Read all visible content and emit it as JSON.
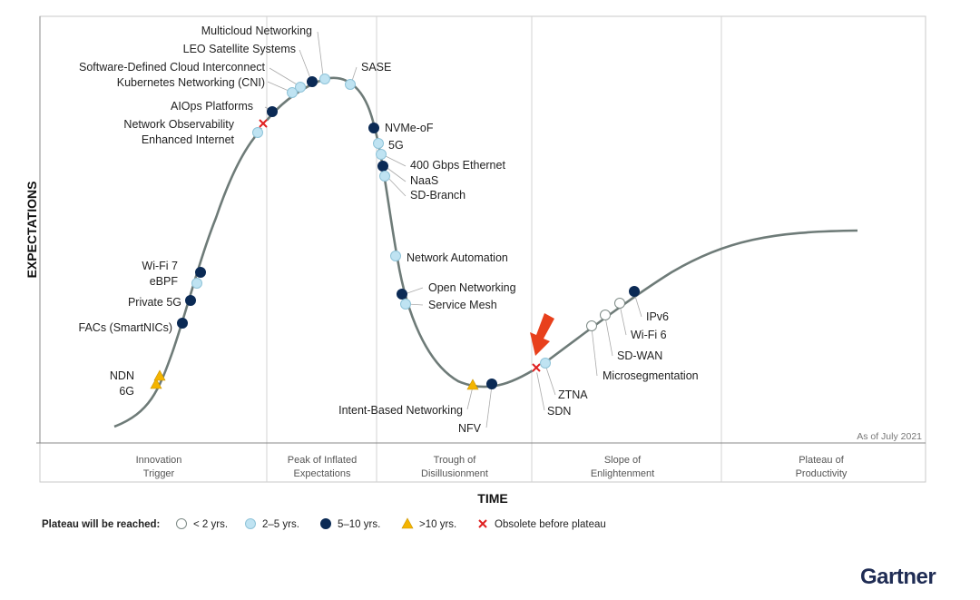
{
  "chart_data": {
    "type": "scatter",
    "title": "",
    "xlabel": "TIME",
    "ylabel": "EXPECTATIONS",
    "as_of": "As of July 2021",
    "brand": "Gartner",
    "phases": [
      [
        "Innovation",
        "Trigger"
      ],
      [
        "Peak of Inflated",
        "Expectations"
      ],
      [
        "Trough of",
        "Disillusionment"
      ],
      [
        "Slope of",
        "Enlightenment"
      ],
      [
        "Plateau of",
        "Productivity"
      ]
    ],
    "legend": {
      "title": "Plateau will be reached:",
      "items": [
        {
          "category": "lt2",
          "label": "< 2 yrs."
        },
        {
          "category": "2to5",
          "label": "2–5 yrs."
        },
        {
          "category": "5to10",
          "label": "5–10 yrs."
        },
        {
          "category": "gt10",
          "label": ">10 yrs."
        },
        {
          "category": "obsolete",
          "label": "Obsolete before plateau"
        }
      ]
    },
    "category_colors": {
      "lt2": "#ffffff",
      "2to5": "#bfe3f2",
      "5to10": "#0b2a55",
      "gt10": "#f4b400",
      "obsolete": "#e02020"
    },
    "curve_color": "#6e7b78",
    "highlight_arrow_color": "#e8401c",
    "points": [
      {
        "name": "6G",
        "category": "gt10"
      },
      {
        "name": "NDN",
        "category": "gt10"
      },
      {
        "name": "FACs (SmartNICs)",
        "category": "5to10"
      },
      {
        "name": "Private 5G",
        "category": "5to10"
      },
      {
        "name": "eBPF",
        "category": "2to5"
      },
      {
        "name": "Wi-Fi 7",
        "category": "5to10"
      },
      {
        "name": "Enhanced Internet",
        "category": "2to5"
      },
      {
        "name": "Network Observability",
        "category": "obsolete"
      },
      {
        "name": "AIOps Platforms",
        "category": "5to10"
      },
      {
        "name": "Kubernetes Networking (CNI)",
        "category": "2to5"
      },
      {
        "name": "Software-Defined Cloud Interconnect",
        "category": "2to5"
      },
      {
        "name": "LEO Satellite Systems",
        "category": "5to10"
      },
      {
        "name": "Multicloud Networking",
        "category": "2to5"
      },
      {
        "name": "SASE",
        "category": "2to5"
      },
      {
        "name": "NVMe-oF",
        "category": "5to10"
      },
      {
        "name": "5G",
        "category": "2to5"
      },
      {
        "name": "400 Gbps Ethernet",
        "category": "2to5"
      },
      {
        "name": "NaaS",
        "category": "5to10"
      },
      {
        "name": "SD-Branch",
        "category": "2to5"
      },
      {
        "name": "Network Automation",
        "category": "2to5"
      },
      {
        "name": "Open Networking",
        "category": "5to10"
      },
      {
        "name": "Service Mesh",
        "category": "2to5"
      },
      {
        "name": "Intent-Based Networking",
        "category": "gt10"
      },
      {
        "name": "NFV",
        "category": "5to10"
      },
      {
        "name": "SDN",
        "category": "obsolete"
      },
      {
        "name": "ZTNA",
        "category": "2to5"
      },
      {
        "name": "Microsegmentation",
        "category": "lt2"
      },
      {
        "name": "SD-WAN",
        "category": "lt2"
      },
      {
        "name": "Wi-Fi 6",
        "category": "lt2"
      },
      {
        "name": "IPv6",
        "category": "5to10"
      }
    ]
  }
}
